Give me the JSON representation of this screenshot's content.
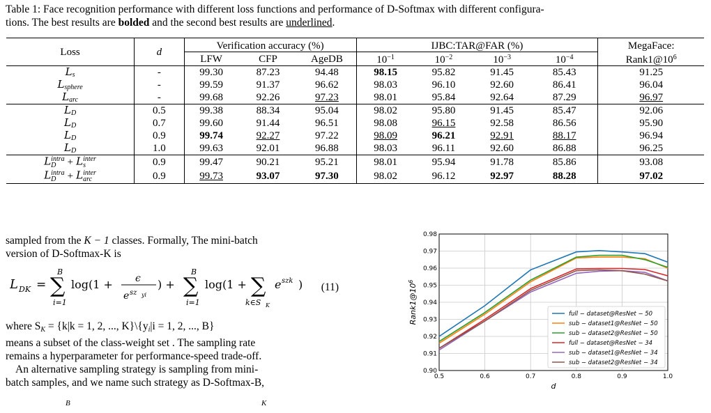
{
  "caption": {
    "prefix": "Table 1: Face recognition performance with different loss functions and performance of D-Softmax with different configura-",
    "line2_a": "tions. The best results are ",
    "bold_word": "bolded",
    "line2_b": " and the second best results are ",
    "underline_word": "underlined",
    "line2_c": "."
  },
  "table": {
    "headers": {
      "loss": "Loss",
      "d": "d",
      "verification": "Verification accuracy (%)",
      "ijbc": "IJBC:TAR@FAR (%)",
      "megaface_line1": "MegaFace:",
      "megaface_line2": "Rank1@10",
      "megaface_exp": "6",
      "lfw": "LFW",
      "cfp": "CFP",
      "agedb": "AgeDB",
      "far1": "10",
      "far2": "10",
      "far3": "10",
      "far4": "10",
      "far1_exp": "−1",
      "far2_exp": "−2",
      "far3_exp": "−3",
      "far4_exp": "−4"
    },
    "rows": [
      {
        "loss_main": "L",
        "loss_sub": "s",
        "loss_sup": "",
        "d": "-",
        "lfw": "99.30",
        "cfp": "87.23",
        "agedb": "94.48",
        "f1": "98.15",
        "f2": "95.82",
        "f3": "91.45",
        "f4": "85.43",
        "mega": "91.25"
      },
      {
        "loss_main": "L",
        "loss_sub": "sphere",
        "loss_sup": "",
        "d": "-",
        "lfw": "99.59",
        "cfp": "91.37",
        "agedb": "96.62",
        "f1": "98.03",
        "f2": "96.10",
        "f3": "92.60",
        "f4": "86.41",
        "mega": "96.04"
      },
      {
        "loss_main": "L",
        "loss_sub": "arc",
        "loss_sup": "",
        "d": "-",
        "lfw": "99.68",
        "cfp": "92.26",
        "agedb": "97.23",
        "f1": "98.01",
        "f2": "95.84",
        "f3": "92.64",
        "f4": "87.29",
        "mega": "96.97"
      },
      {
        "loss_main": "L",
        "loss_sub": "D",
        "loss_sup": "",
        "d": "0.5",
        "lfw": "99.38",
        "cfp": "88.34",
        "agedb": "95.04",
        "f1": "98.02",
        "f2": "95.80",
        "f3": "91.45",
        "f4": "85.47",
        "mega": "92.06"
      },
      {
        "loss_main": "L",
        "loss_sub": "D",
        "loss_sup": "",
        "d": "0.7",
        "lfw": "99.60",
        "cfp": "91.44",
        "agedb": "96.51",
        "f1": "98.08",
        "f2": "96.15",
        "f3": "92.58",
        "f4": "86.56",
        "mega": "95.90"
      },
      {
        "loss_main": "L",
        "loss_sub": "D",
        "loss_sup": "",
        "d": "0.9",
        "lfw": "99.74",
        "cfp": "92.27",
        "agedb": "97.22",
        "f1": "98.09",
        "f2": "96.21",
        "f3": "92.91",
        "f4": "88.17",
        "mega": "96.94"
      },
      {
        "loss_main": "L",
        "loss_sub": "D",
        "loss_sup": "",
        "d": "1.0",
        "lfw": "99.63",
        "cfp": "92.01",
        "agedb": "96.88",
        "f1": "98.03",
        "f2": "96.11",
        "f3": "92.60",
        "f4": "86.88",
        "mega": "96.25"
      },
      {
        "loss_main": "L",
        "loss_sub": "D",
        "loss_sup": "intra",
        "loss_plus": "+",
        "loss_main2": "L",
        "loss_sub2": "s",
        "loss_sup2": "inter",
        "d": "0.9",
        "lfw": "99.47",
        "cfp": "90.21",
        "agedb": "95.21",
        "f1": "98.01",
        "f2": "95.94",
        "f3": "91.78",
        "f4": "85.86",
        "mega": "93.08"
      },
      {
        "loss_main": "L",
        "loss_sub": "D",
        "loss_sup": "intra",
        "loss_plus": "+",
        "loss_main2": "L",
        "loss_sub2": "arc",
        "loss_sup2": "inter",
        "d": "0.9",
        "lfw": "99.73",
        "cfp": "93.07",
        "agedb": "97.30",
        "f1": "98.02",
        "f2": "96.12",
        "f3": "92.97",
        "f4": "88.28",
        "mega": "97.02"
      }
    ]
  },
  "body": {
    "line1": "sampled from the ",
    "k_expr": "K − 1",
    "line1_b": " classes. Formally, The mini-batch",
    "line2": "version of D-Softmax-K is",
    "eq_lhs": "L",
    "eq_lhs_sub": "DK",
    "eq_eq": "=",
    "eq_sum_top": "B",
    "eq_sum_bottom": "i=1",
    "eq_log1": "log(1 +",
    "eq_frac_num": "ϵ",
    "eq_frac_den": "e",
    "eq_frac_den_sup": "sz",
    "eq_frac_den_sub": "yi",
    "eq_close1": ") +",
    "eq_sum2_top": "B",
    "eq_sum2_bottom": "i=1",
    "eq_log2": "log(1 +",
    "eq_sum3_bottom": "k∈S",
    "eq_sum3_bottom_sub": "K",
    "eq_exp": "e",
    "eq_exp_sup": "szk",
    "eq_close2": ")",
    "eq_number": "(11)",
    "p2_line1": "where S",
    "p2_line1_sub": "K",
    "p2_line1_b": " = {k|k = 1, 2, ..., K}\\{y",
    "p2_line1_sub2": "i",
    "p2_line1_c": "|i = 1, 2, ..., B}",
    "p2_line2": "means a subset of the class-weight set . The sampling rate",
    "p2_line3": "remains a hyperparameter for performance-speed trade-off.",
    "p3_line1": "An alternative sampling strategy is sampling from mini-",
    "p3_line2": "batch samples, and we name such strategy as D-Softmax-B,",
    "frag_b": "B",
    "frag_k": "K"
  },
  "chart_data": {
    "type": "line",
    "title": "",
    "xlabel": "d",
    "ylabel": "Rank1@10",
    "ylabel_exp": "6",
    "xlim": [
      0.5,
      1.0
    ],
    "ylim": [
      0.9,
      0.98
    ],
    "xticks": [
      "0.5",
      "0.6",
      "0.7",
      "0.8",
      "0.9",
      "1.0"
    ],
    "yticks": [
      "0.90",
      "0.91",
      "0.92",
      "0.93",
      "0.94",
      "0.95",
      "0.96",
      "0.97",
      "0.98"
    ],
    "grid": true,
    "legend_position": "lower-right",
    "x": [
      0.5,
      0.6,
      0.7,
      0.8,
      0.85,
      0.9,
      0.95,
      1.0
    ],
    "series": [
      {
        "name": "full − dataset@ResNet − 50",
        "color": "#1f77b4",
        "values": [
          0.92,
          0.938,
          0.959,
          0.9695,
          0.9703,
          0.9695,
          0.9685,
          0.9635
        ]
      },
      {
        "name": "sub − dataset1@ResNet − 50",
        "color": "#ff7f0e",
        "values": [
          0.916,
          0.933,
          0.952,
          0.966,
          0.9665,
          0.9665,
          0.9655,
          0.96
        ]
      },
      {
        "name": "sub − dataset2@ResNet − 50",
        "color": "#2ca02c",
        "values": [
          0.917,
          0.934,
          0.953,
          0.9665,
          0.9675,
          0.9675,
          0.965,
          0.9605
        ]
      },
      {
        "name": "full − dataset@ResNet − 34",
        "color": "#d62728",
        "values": [
          0.913,
          0.93,
          0.948,
          0.9595,
          0.9598,
          0.9598,
          0.9592,
          0.9555
        ]
      },
      {
        "name": "sub − dataset1@ResNet − 34",
        "color": "#9467bd",
        "values": [
          0.912,
          0.929,
          0.946,
          0.957,
          0.9582,
          0.9585,
          0.9575,
          0.9525
        ]
      },
      {
        "name": "sub − dataset2@ResNet − 34",
        "color": "#8c564b",
        "values": [
          0.913,
          0.929,
          0.947,
          0.9585,
          0.959,
          0.9585,
          0.9565,
          0.9525
        ]
      }
    ]
  }
}
